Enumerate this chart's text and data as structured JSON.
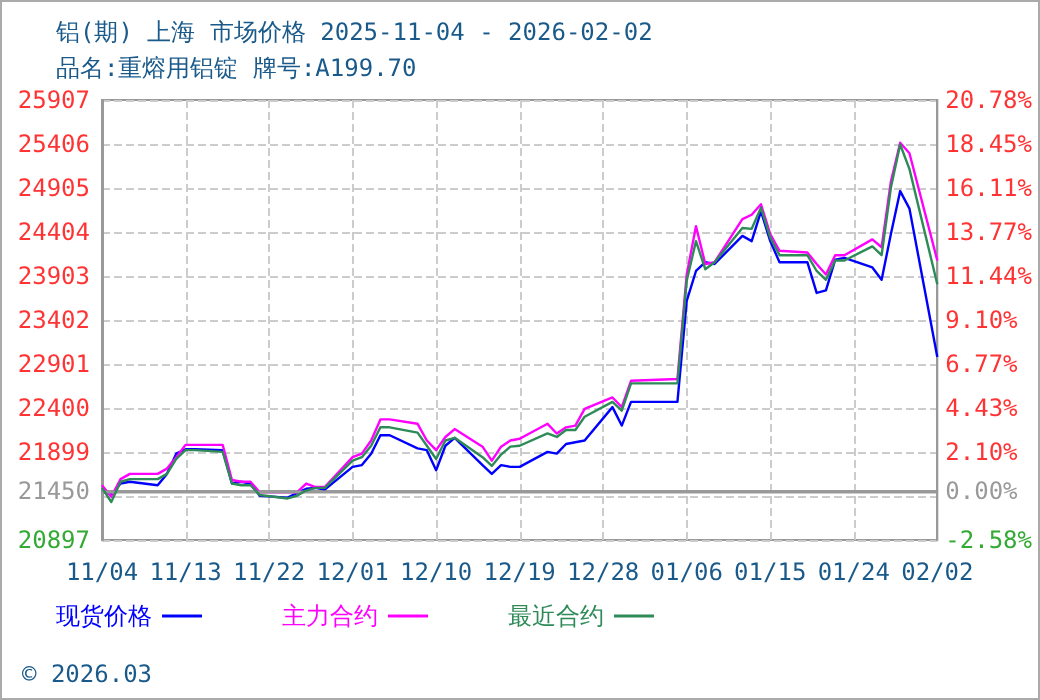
{
  "chart_data": {
    "type": "line",
    "title": "铝(期) 上海 市场价格 2025-11-04 - 2026-02-02",
    "subtitle": "品名:重熔用铝锭 牌号:A199.70",
    "x": [
      "2025-11-04",
      "2025-11-05",
      "2025-11-06",
      "2025-11-07",
      "2025-11-10",
      "2025-11-11",
      "2025-11-12",
      "2025-11-13",
      "2025-11-14",
      "2025-11-17",
      "2025-11-18",
      "2025-11-19",
      "2025-11-20",
      "2025-11-21",
      "2025-11-24",
      "2025-11-25",
      "2025-11-26",
      "2025-11-27",
      "2025-11-28",
      "2025-12-01",
      "2025-12-02",
      "2025-12-03",
      "2025-12-04",
      "2025-12-05",
      "2025-12-08",
      "2025-12-09",
      "2025-12-10",
      "2025-12-11",
      "2025-12-12",
      "2025-12-15",
      "2025-12-16",
      "2025-12-17",
      "2025-12-18",
      "2025-12-19",
      "2025-12-22",
      "2025-12-23",
      "2025-12-24",
      "2025-12-25",
      "2025-12-26",
      "2025-12-29",
      "2025-12-30",
      "2025-12-31",
      "2026-01-05",
      "2026-01-06",
      "2026-01-07",
      "2026-01-08",
      "2026-01-09",
      "2026-01-12",
      "2026-01-13",
      "2026-01-14",
      "2026-01-15",
      "2026-01-16",
      "2026-01-19",
      "2026-01-20",
      "2026-01-21",
      "2026-01-22",
      "2026-01-23",
      "2026-01-26",
      "2026-01-27",
      "2026-01-28",
      "2026-01-29",
      "2026-01-30",
      "2026-02-02"
    ],
    "series": [
      {
        "name": "现货价格",
        "color": "#0000ff",
        "values": [
          21450,
          21410,
          21540,
          21560,
          21520,
          21650,
          21880,
          21930,
          21930,
          21920,
          21540,
          21560,
          21540,
          21400,
          21380,
          21430,
          21480,
          21490,
          21470,
          21730,
          21750,
          21880,
          22090,
          22090,
          21940,
          21920,
          21690,
          21970,
          22060,
          21750,
          21650,
          21750,
          21730,
          21730,
          21900,
          21880,
          21990,
          22010,
          22030,
          22410,
          22200,
          22470,
          22470,
          23620,
          23960,
          24060,
          24040,
          24360,
          24300,
          24640,
          24300,
          24060,
          24060,
          23710,
          23740,
          24090,
          24110,
          24000,
          23860,
          24380,
          24870,
          24670,
          22980
        ]
      },
      {
        "name": "主力合约",
        "color": "#ff00ff",
        "values": [
          21520,
          21390,
          21590,
          21650,
          21650,
          21710,
          21840,
          21980,
          21980,
          21980,
          21580,
          21560,
          21560,
          21440,
          21440,
          21440,
          21540,
          21500,
          21500,
          21840,
          21880,
          22030,
          22270,
          22270,
          22220,
          22030,
          21920,
          22070,
          22160,
          21960,
          21800,
          21960,
          22030,
          22050,
          22220,
          22110,
          22180,
          22200,
          22390,
          22520,
          22410,
          22710,
          22730,
          23920,
          24470,
          24040,
          24060,
          24550,
          24600,
          24720,
          24380,
          24190,
          24170,
          24040,
          23920,
          24140,
          24140,
          24320,
          24230,
          24980,
          25420,
          25300,
          24080
        ]
      },
      {
        "name": "最近合约",
        "color": "#2e8b57",
        "values": [
          21490,
          21330,
          21560,
          21590,
          21590,
          21650,
          21820,
          21920,
          21920,
          21900,
          21540,
          21520,
          21520,
          21410,
          21370,
          21400,
          21460,
          21490,
          21490,
          21800,
          21840,
          21970,
          22180,
          22180,
          22120,
          21970,
          21820,
          22030,
          22060,
          21840,
          21740,
          21870,
          21960,
          21970,
          22110,
          22070,
          22150,
          22150,
          22300,
          22470,
          22370,
          22680,
          22680,
          23850,
          24300,
          23980,
          24060,
          24450,
          24440,
          24680,
          24340,
          24140,
          24140,
          23960,
          23860,
          24080,
          24080,
          24240,
          24140,
          24910,
          25400,
          25120,
          23810
        ]
      }
    ],
    "xlim": [
      "2025-11-04",
      "2026-02-02"
    ],
    "xticks": [
      {
        "value": "2025-11-04",
        "label": "11/04"
      },
      {
        "value": "2025-11-13",
        "label": "11/13"
      },
      {
        "value": "2025-11-22",
        "label": "11/22"
      },
      {
        "value": "2025-12-01",
        "label": "12/01"
      },
      {
        "value": "2025-12-10",
        "label": "12/10"
      },
      {
        "value": "2025-12-19",
        "label": "12/19"
      },
      {
        "value": "2025-12-28",
        "label": "12/28"
      },
      {
        "value": "2026-01-06",
        "label": "01/06"
      },
      {
        "value": "2026-01-15",
        "label": "01/15"
      },
      {
        "value": "2026-01-24",
        "label": "01/24"
      },
      {
        "value": "2026-02-02",
        "label": "02/02"
      }
    ],
    "ylim": [
      20897,
      25907
    ],
    "yticks": [
      20897,
      {
        "value": 21398,
        "label": null
      },
      21450,
      21899,
      22400,
      22901,
      23402,
      23903,
      24404,
      24905,
      25406,
      25907
    ],
    "y2lim": [
      -2.58,
      20.78
    ],
    "y2ticks": [
      {
        "value": -2.58,
        "label": "-2.58%"
      },
      {
        "value": 0,
        "label": "0.00%"
      },
      {
        "value": 2.1,
        "label": "2.10%"
      },
      {
        "value": 4.43,
        "label": "4.43%"
      },
      {
        "value": 6.77,
        "label": "6.77%"
      },
      {
        "value": 9.1,
        "label": "9.10%"
      },
      {
        "value": 11.44,
        "label": "11.44%"
      },
      {
        "value": 13.77,
        "label": "13.77%"
      },
      {
        "value": 16.11,
        "label": "16.11%"
      },
      {
        "value": 18.45,
        "label": "18.45%"
      },
      {
        "value": 20.78,
        "label": "20.78%"
      }
    ],
    "ref_lines": [
      {
        "axis": "y",
        "value": 21450,
        "color": "#999999"
      }
    ],
    "grid": true,
    "legend": "bottom",
    "marker": "none",
    "annotations": [
      "© 2026.03"
    ]
  }
}
